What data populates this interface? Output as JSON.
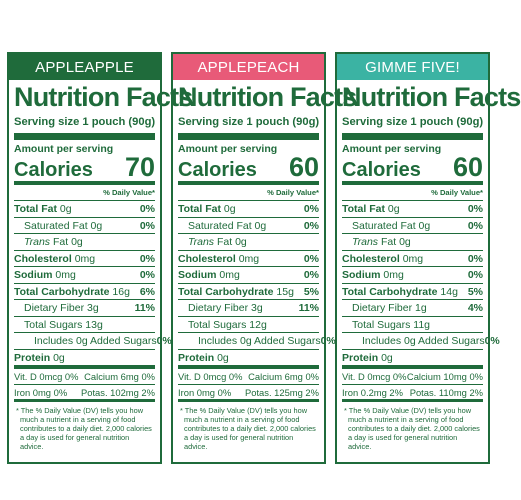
{
  "panels": [
    {
      "name": "APPLEAPPLE",
      "header_color": "#1f6b3b",
      "title": "Nutrition Facts",
      "serving": "Serving size 1 pouch (90g)",
      "amount_per_serving": "Amount per serving",
      "calories_label": "Calories",
      "calories": "70",
      "dv_header": "% Daily Value*",
      "total_fat": "Total Fat",
      "total_fat_amt": "0g",
      "total_fat_pct": "0%",
      "sat_fat": "Saturated Fat",
      "sat_fat_amt": "0g",
      "sat_fat_pct": "0%",
      "trans_fat": "Trans",
      "trans_fat_rest": "Fat 0g",
      "cholesterol": "Cholesterol",
      "cholesterol_amt": "0mg",
      "cholesterol_pct": "0%",
      "sodium": "Sodium",
      "sodium_amt": "0mg",
      "sodium_pct": "0%",
      "carb": "Total Carbohydrate",
      "carb_amt": "16g",
      "carb_pct": "6%",
      "fiber": "Dietary Fiber 3g",
      "fiber_pct": "11%",
      "sugars": "Total Sugars 13g",
      "added_sugars": "Includes 0g Added Sugars",
      "added_sugars_pct": "0%",
      "protein": "Protein",
      "protein_amt": "0g",
      "vit_d": "Vit. D 0mcg 0%",
      "calcium": "Calcium 6mg 0%",
      "iron": "Iron 0mg 0%",
      "potas": "Potas. 102mg 2%",
      "footnote": "* The % Daily Value (DV) tells you how much a nutrient in a serving of food contributes to a daily diet. 2,000 calories a day is used for general nutrition advice."
    },
    {
      "name": "APPLEPEACH",
      "header_color": "#e85a78",
      "title": "Nutrition Facts",
      "serving": "Serving size 1 pouch (90g)",
      "amount_per_serving": "Amount per serving",
      "calories_label": "Calories",
      "calories": "60",
      "dv_header": "% Daily Value*",
      "total_fat": "Total Fat",
      "total_fat_amt": "0g",
      "total_fat_pct": "0%",
      "sat_fat": "Saturated Fat",
      "sat_fat_amt": "0g",
      "sat_fat_pct": "0%",
      "trans_fat": "Trans",
      "trans_fat_rest": "Fat 0g",
      "cholesterol": "Cholesterol",
      "cholesterol_amt": "0mg",
      "cholesterol_pct": "0%",
      "sodium": "Sodium",
      "sodium_amt": "0mg",
      "sodium_pct": "0%",
      "carb": "Total Carbohydrate",
      "carb_amt": "15g",
      "carb_pct": "5%",
      "fiber": "Dietary Fiber 3g",
      "fiber_pct": "11%",
      "sugars": "Total Sugars 12g",
      "added_sugars": "Includes 0g Added Sugars",
      "added_sugars_pct": "0%",
      "protein": "Protein",
      "protein_amt": "0g",
      "vit_d": "Vit. D 0mcg 0%",
      "calcium": "Calcium 6mg 0%",
      "iron": "Iron 0mg 0%",
      "potas": "Potas. 125mg 2%",
      "footnote": "* The % Daily Value (DV) tells you how much a nutrient in a serving of food contributes to a daily diet. 2,000 calories a day is used for general nutrition advice."
    },
    {
      "name": "GIMME FIVE!",
      "header_color": "#3bb3a3",
      "title": "Nutrition Facts",
      "serving": "Serving size 1 pouch (90g)",
      "amount_per_serving": "Amount per serving",
      "calories_label": "Calories",
      "calories": "60",
      "dv_header": "% Daily Value*",
      "total_fat": "Total Fat",
      "total_fat_amt": "0g",
      "total_fat_pct": "0%",
      "sat_fat": "Saturated Fat",
      "sat_fat_amt": "0g",
      "sat_fat_pct": "0%",
      "trans_fat": "Trans",
      "trans_fat_rest": "Fat 0g",
      "cholesterol": "Cholesterol",
      "cholesterol_amt": "0mg",
      "cholesterol_pct": "0%",
      "sodium": "Sodium",
      "sodium_amt": "0mg",
      "sodium_pct": "0%",
      "carb": "Total Carbohydrate",
      "carb_amt": "14g",
      "carb_pct": "5%",
      "fiber": "Dietary Fiber 1g",
      "fiber_pct": "4%",
      "sugars": "Total Sugars 11g",
      "added_sugars": "Includes 0g Added Sugars",
      "added_sugars_pct": "0%",
      "protein": "Protein",
      "protein_amt": "0g",
      "vit_d": "Vit. D 0mcg 0%",
      "calcium": "Calcium 10mg 0%",
      "iron": "Iron 0.2mg 2%",
      "potas": "Potas. 110mg 2%",
      "footnote": "* The % Daily Value (DV) tells you how much a nutrient in a serving of food contributes to a daily diet. 2,000 calories a day is used for general nutrition advice."
    }
  ]
}
